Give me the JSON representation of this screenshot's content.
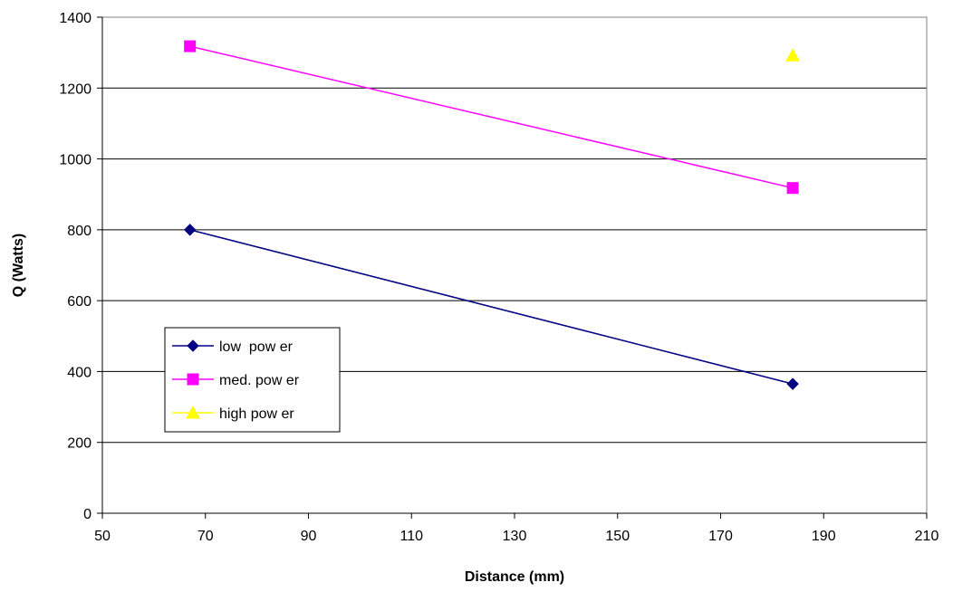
{
  "chart_data": {
    "type": "line",
    "title": "",
    "xlabel": "Distance (mm)",
    "ylabel": "Q (Watts)",
    "xlim": [
      50,
      210
    ],
    "ylim": [
      0,
      1400
    ],
    "x_ticks": [
      "50",
      "70",
      "90",
      "110",
      "130",
      "150",
      "170",
      "190",
      "210"
    ],
    "y_ticks": [
      "0",
      "200",
      "400",
      "600",
      "800",
      "1000",
      "1200",
      "1400"
    ],
    "grid": "horizontal major gridlines",
    "legend_position": "lower-left inside plot",
    "series": [
      {
        "name": "low  pow er",
        "color": "#000080",
        "marker": "diamond",
        "x": [
          67,
          184
        ],
        "y": [
          800,
          365
        ]
      },
      {
        "name": "med. pow er",
        "color": "#ff00ff",
        "marker": "square",
        "x": [
          67,
          184
        ],
        "y": [
          1318,
          918
        ]
      },
      {
        "name": "high pow er",
        "color": "#ffff00",
        "marker": "triangle",
        "x": [
          184
        ],
        "y": [
          1292
        ]
      }
    ]
  }
}
